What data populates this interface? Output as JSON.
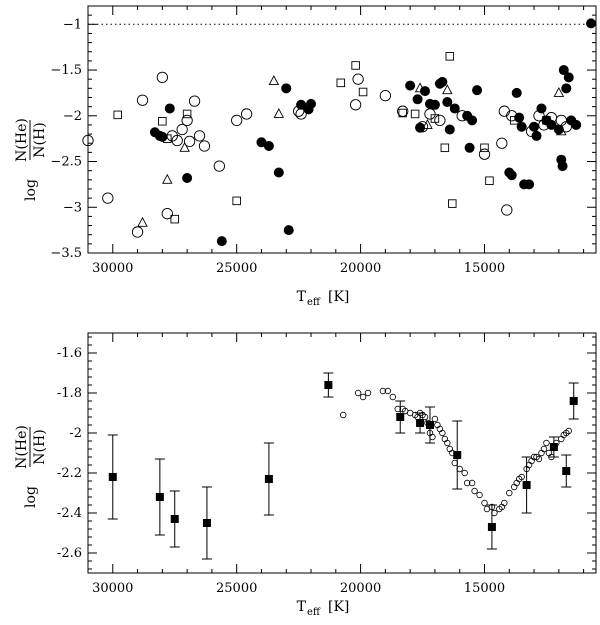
{
  "chart_data": [
    {
      "type": "scatter",
      "title": "",
      "xlabel": "T_eff [K]",
      "xlabel_main": "T",
      "xlabel_sub": "eff",
      "xlabel_unit": "[K]",
      "ylabel_num": "N(He)",
      "ylabel_den": "N(H)",
      "ylabel_prefix": "log",
      "xlim": [
        31000,
        10500
      ],
      "ylim": [
        -3.5,
        -0.8
      ],
      "xticks": [
        {
          "value": 30000,
          "label": "30000"
        },
        {
          "value": 25000,
          "label": "25000"
        },
        {
          "value": 20000,
          "label": "20000"
        },
        {
          "value": 15000,
          "label": "15000"
        }
      ],
      "yticks": [
        {
          "value": -1,
          "label": "−1"
        },
        {
          "value": -1.5,
          "label": "−1.5"
        },
        {
          "value": -2,
          "label": "−2"
        },
        {
          "value": -2.5,
          "label": "−2.5"
        },
        {
          "value": -3,
          "label": "−3"
        },
        {
          "value": -3.5,
          "label": "−3.5"
        }
      ],
      "reference_line": {
        "y": -1,
        "style": "dotted"
      },
      "series": [
        {
          "name": "filled circles",
          "marker": "filled-circle",
          "points": [
            [
              28300,
              -2.18
            ],
            [
              28100,
              -2.22
            ],
            [
              28000,
              -2.23
            ],
            [
              27700,
              -1.92
            ],
            [
              27000,
              -2.68
            ],
            [
              25600,
              -3.37
            ],
            [
              24000,
              -2.29
            ],
            [
              23700,
              -2.33
            ],
            [
              23300,
              -2.62
            ],
            [
              23000,
              -1.7
            ],
            [
              22900,
              -3.25
            ],
            [
              22400,
              -1.88
            ],
            [
              22100,
              -1.93
            ],
            [
              22000,
              -1.87
            ],
            [
              18000,
              -1.67
            ],
            [
              17700,
              -1.82
            ],
            [
              17600,
              -2.13
            ],
            [
              17400,
              -1.73
            ],
            [
              17200,
              -1.87
            ],
            [
              17000,
              -1.88
            ],
            [
              16800,
              -1.65
            ],
            [
              16700,
              -1.63
            ],
            [
              16500,
              -1.85
            ],
            [
              16400,
              -2.15
            ],
            [
              16200,
              -1.92
            ],
            [
              15700,
              -2.0
            ],
            [
              15600,
              -2.35
            ],
            [
              15500,
              -2.05
            ],
            [
              15300,
              -1.72
            ],
            [
              14000,
              -2.62
            ],
            [
              13900,
              -2.65
            ],
            [
              13700,
              -1.75
            ],
            [
              13600,
              -2.02
            ],
            [
              13500,
              -2.12
            ],
            [
              13400,
              -2.75
            ],
            [
              13200,
              -2.75
            ],
            [
              13000,
              -2.12
            ],
            [
              12900,
              -2.22
            ],
            [
              12700,
              -1.92
            ],
            [
              12500,
              -2.05
            ],
            [
              12300,
              -2.1
            ],
            [
              12000,
              -2.15
            ],
            [
              11900,
              -2.48
            ],
            [
              11850,
              -2.55
            ],
            [
              11800,
              -1.5
            ],
            [
              11700,
              -1.7
            ],
            [
              11600,
              -1.58
            ],
            [
              11500,
              -2.05
            ],
            [
              11300,
              -2.1
            ],
            [
              10700,
              -0.99
            ]
          ]
        },
        {
          "name": "open circles",
          "marker": "open-circle",
          "points": [
            [
              31000,
              -2.27
            ],
            [
              30200,
              -2.9
            ],
            [
              29000,
              -3.27
            ],
            [
              28800,
              -1.83
            ],
            [
              28000,
              -1.58
            ],
            [
              27800,
              -3.07
            ],
            [
              27600,
              -2.22
            ],
            [
              27400,
              -2.27
            ],
            [
              27200,
              -2.15
            ],
            [
              27000,
              -2.05
            ],
            [
              26900,
              -2.28
            ],
            [
              26700,
              -1.84
            ],
            [
              26500,
              -2.22
            ],
            [
              26300,
              -2.33
            ],
            [
              25700,
              -2.55
            ],
            [
              25000,
              -2.05
            ],
            [
              24600,
              -1.98
            ],
            [
              22500,
              -1.95
            ],
            [
              22400,
              -1.98
            ],
            [
              20200,
              -1.88
            ],
            [
              20100,
              -1.6
            ],
            [
              19000,
              -1.78
            ],
            [
              18300,
              -1.95
            ],
            [
              17500,
              -2.12
            ],
            [
              17200,
              -1.98
            ],
            [
              16800,
              -2.05
            ],
            [
              15900,
              -2.0
            ],
            [
              15000,
              -2.42
            ],
            [
              14300,
              -2.3
            ],
            [
              14200,
              -1.95
            ],
            [
              14100,
              -3.03
            ],
            [
              13900,
              -2.0
            ],
            [
              13100,
              -2.17
            ],
            [
              12800,
              -2.0
            ],
            [
              12600,
              -2.1
            ],
            [
              12300,
              -2.02
            ],
            [
              11900,
              -2.05
            ],
            [
              11700,
              -2.12
            ]
          ]
        },
        {
          "name": "open squares",
          "marker": "open-square",
          "points": [
            [
              29800,
              -1.99
            ],
            [
              28000,
              -2.06
            ],
            [
              27800,
              -2.25
            ],
            [
              27500,
              -3.13
            ],
            [
              27000,
              -1.98
            ],
            [
              25000,
              -2.93
            ],
            [
              20800,
              -1.64
            ],
            [
              20200,
              -1.45
            ],
            [
              19900,
              -1.74
            ],
            [
              18300,
              -1.97
            ],
            [
              17800,
              -1.98
            ],
            [
              17000,
              -2.03
            ],
            [
              16600,
              -2.35
            ],
            [
              16400,
              -1.35
            ],
            [
              16300,
              -2.96
            ],
            [
              15000,
              -2.35
            ],
            [
              14800,
              -2.71
            ],
            [
              13800,
              -2.05
            ],
            [
              12500,
              -2.05
            ]
          ]
        },
        {
          "name": "open triangles",
          "marker": "open-triangle",
          "points": [
            [
              28800,
              -3.17
            ],
            [
              27800,
              -2.7
            ],
            [
              27100,
              -2.35
            ],
            [
              23500,
              -1.62
            ],
            [
              23300,
              -1.98
            ],
            [
              17600,
              -1.7
            ],
            [
              17300,
              -2.1
            ],
            [
              16500,
              -1.72
            ],
            [
              12000,
              -1.75
            ],
            [
              11900,
              -2.17
            ]
          ]
        }
      ]
    },
    {
      "type": "scatter",
      "title": "",
      "xlabel": "T_eff [K]",
      "xlabel_main": "T",
      "xlabel_sub": "eff",
      "xlabel_unit": "[K]",
      "ylabel_num": "N(He)",
      "ylabel_den": "N(H)",
      "ylabel_prefix": "log",
      "xlim": [
        31000,
        10500
      ],
      "ylim": [
        -2.7,
        -1.5
      ],
      "xticks": [
        {
          "value": 30000,
          "label": "30000"
        },
        {
          "value": 25000,
          "label": "25000"
        },
        {
          "value": 20000,
          "label": "20000"
        },
        {
          "value": 15000,
          "label": "15000"
        }
      ],
      "yticks": [
        {
          "value": -1.6,
          "label": "-1.6"
        },
        {
          "value": -1.8,
          "label": "-1.8"
        },
        {
          "value": -2,
          "label": "-2"
        },
        {
          "value": -2.2,
          "label": "-2.2"
        },
        {
          "value": -2.4,
          "label": "-2.4"
        },
        {
          "value": -2.6,
          "label": "-2.6"
        }
      ],
      "series": [
        {
          "name": "binned means",
          "marker": "filled-square",
          "points": [
            {
              "x": 30000,
              "y": -2.22,
              "err": 0.21
            },
            {
              "x": 28100,
              "y": -2.32,
              "err": 0.19
            },
            {
              "x": 27500,
              "y": -2.43,
              "err": 0.14
            },
            {
              "x": 26200,
              "y": -2.45,
              "err": 0.18
            },
            {
              "x": 23700,
              "y": -2.23,
              "err": 0.18
            },
            {
              "x": 21300,
              "y": -1.76,
              "err": 0.06
            },
            {
              "x": 18400,
              "y": -1.92,
              "err": 0.08
            },
            {
              "x": 17600,
              "y": -1.95,
              "err": 0.05
            },
            {
              "x": 17200,
              "y": -1.96,
              "err": 0.09
            },
            {
              "x": 16100,
              "y": -2.11,
              "err": 0.17
            },
            {
              "x": 14700,
              "y": -2.47,
              "err": 0.11
            },
            {
              "x": 13300,
              "y": -2.26,
              "err": 0.14
            },
            {
              "x": 12200,
              "y": -2.07,
              "err": 0.05
            },
            {
              "x": 11700,
              "y": -2.19,
              "err": 0.08
            },
            {
              "x": 11400,
              "y": -1.84,
              "err": 0.09
            }
          ]
        },
        {
          "name": "smoothed values",
          "marker": "open-circle-small",
          "points": [
            [
              20700,
              -1.91
            ],
            [
              20100,
              -1.8
            ],
            [
              19900,
              -1.82
            ],
            [
              19700,
              -1.8
            ],
            [
              19100,
              -1.79
            ],
            [
              18900,
              -1.79
            ],
            [
              18700,
              -1.82
            ],
            [
              18500,
              -1.88
            ],
            [
              18300,
              -1.88
            ],
            [
              18200,
              -1.89
            ],
            [
              18000,
              -1.9
            ],
            [
              17800,
              -1.91
            ],
            [
              17700,
              -1.92
            ],
            [
              17600,
              -1.9
            ],
            [
              17500,
              -1.91
            ],
            [
              17400,
              -1.92
            ],
            [
              17300,
              -1.95
            ],
            [
              17200,
              -2.0
            ],
            [
              17100,
              -2.02
            ],
            [
              17000,
              -1.93
            ],
            [
              16900,
              -1.96
            ],
            [
              16800,
              -1.98
            ],
            [
              16700,
              -2.0
            ],
            [
              16600,
              -2.03
            ],
            [
              16500,
              -2.05
            ],
            [
              16400,
              -2.08
            ],
            [
              16300,
              -2.1
            ],
            [
              16200,
              -2.15
            ],
            [
              16000,
              -2.18
            ],
            [
              15800,
              -2.2
            ],
            [
              15700,
              -2.25
            ],
            [
              15500,
              -2.25
            ],
            [
              15400,
              -2.29
            ],
            [
              15200,
              -2.31
            ],
            [
              15000,
              -2.35
            ],
            [
              14900,
              -2.38
            ],
            [
              14700,
              -2.37
            ],
            [
              14600,
              -2.4
            ],
            [
              14400,
              -2.38
            ],
            [
              14300,
              -2.37
            ],
            [
              14200,
              -2.35
            ],
            [
              14000,
              -2.3
            ],
            [
              13800,
              -2.27
            ],
            [
              13700,
              -2.25
            ],
            [
              13600,
              -2.23
            ],
            [
              13500,
              -2.22
            ],
            [
              13300,
              -2.18
            ],
            [
              13200,
              -2.16
            ],
            [
              13100,
              -2.14
            ],
            [
              13000,
              -2.12
            ],
            [
              12900,
              -2.12
            ],
            [
              12800,
              -2.13
            ],
            [
              12700,
              -2.1
            ],
            [
              12600,
              -2.08
            ],
            [
              12500,
              -2.05
            ],
            [
              12400,
              -2.1
            ],
            [
              12300,
              -2.12
            ],
            [
              12100,
              -2.05
            ],
            [
              11900,
              -2.03
            ],
            [
              11800,
              -2.01
            ],
            [
              11700,
              -2.0
            ],
            [
              11600,
              -1.99
            ]
          ]
        }
      ]
    }
  ]
}
